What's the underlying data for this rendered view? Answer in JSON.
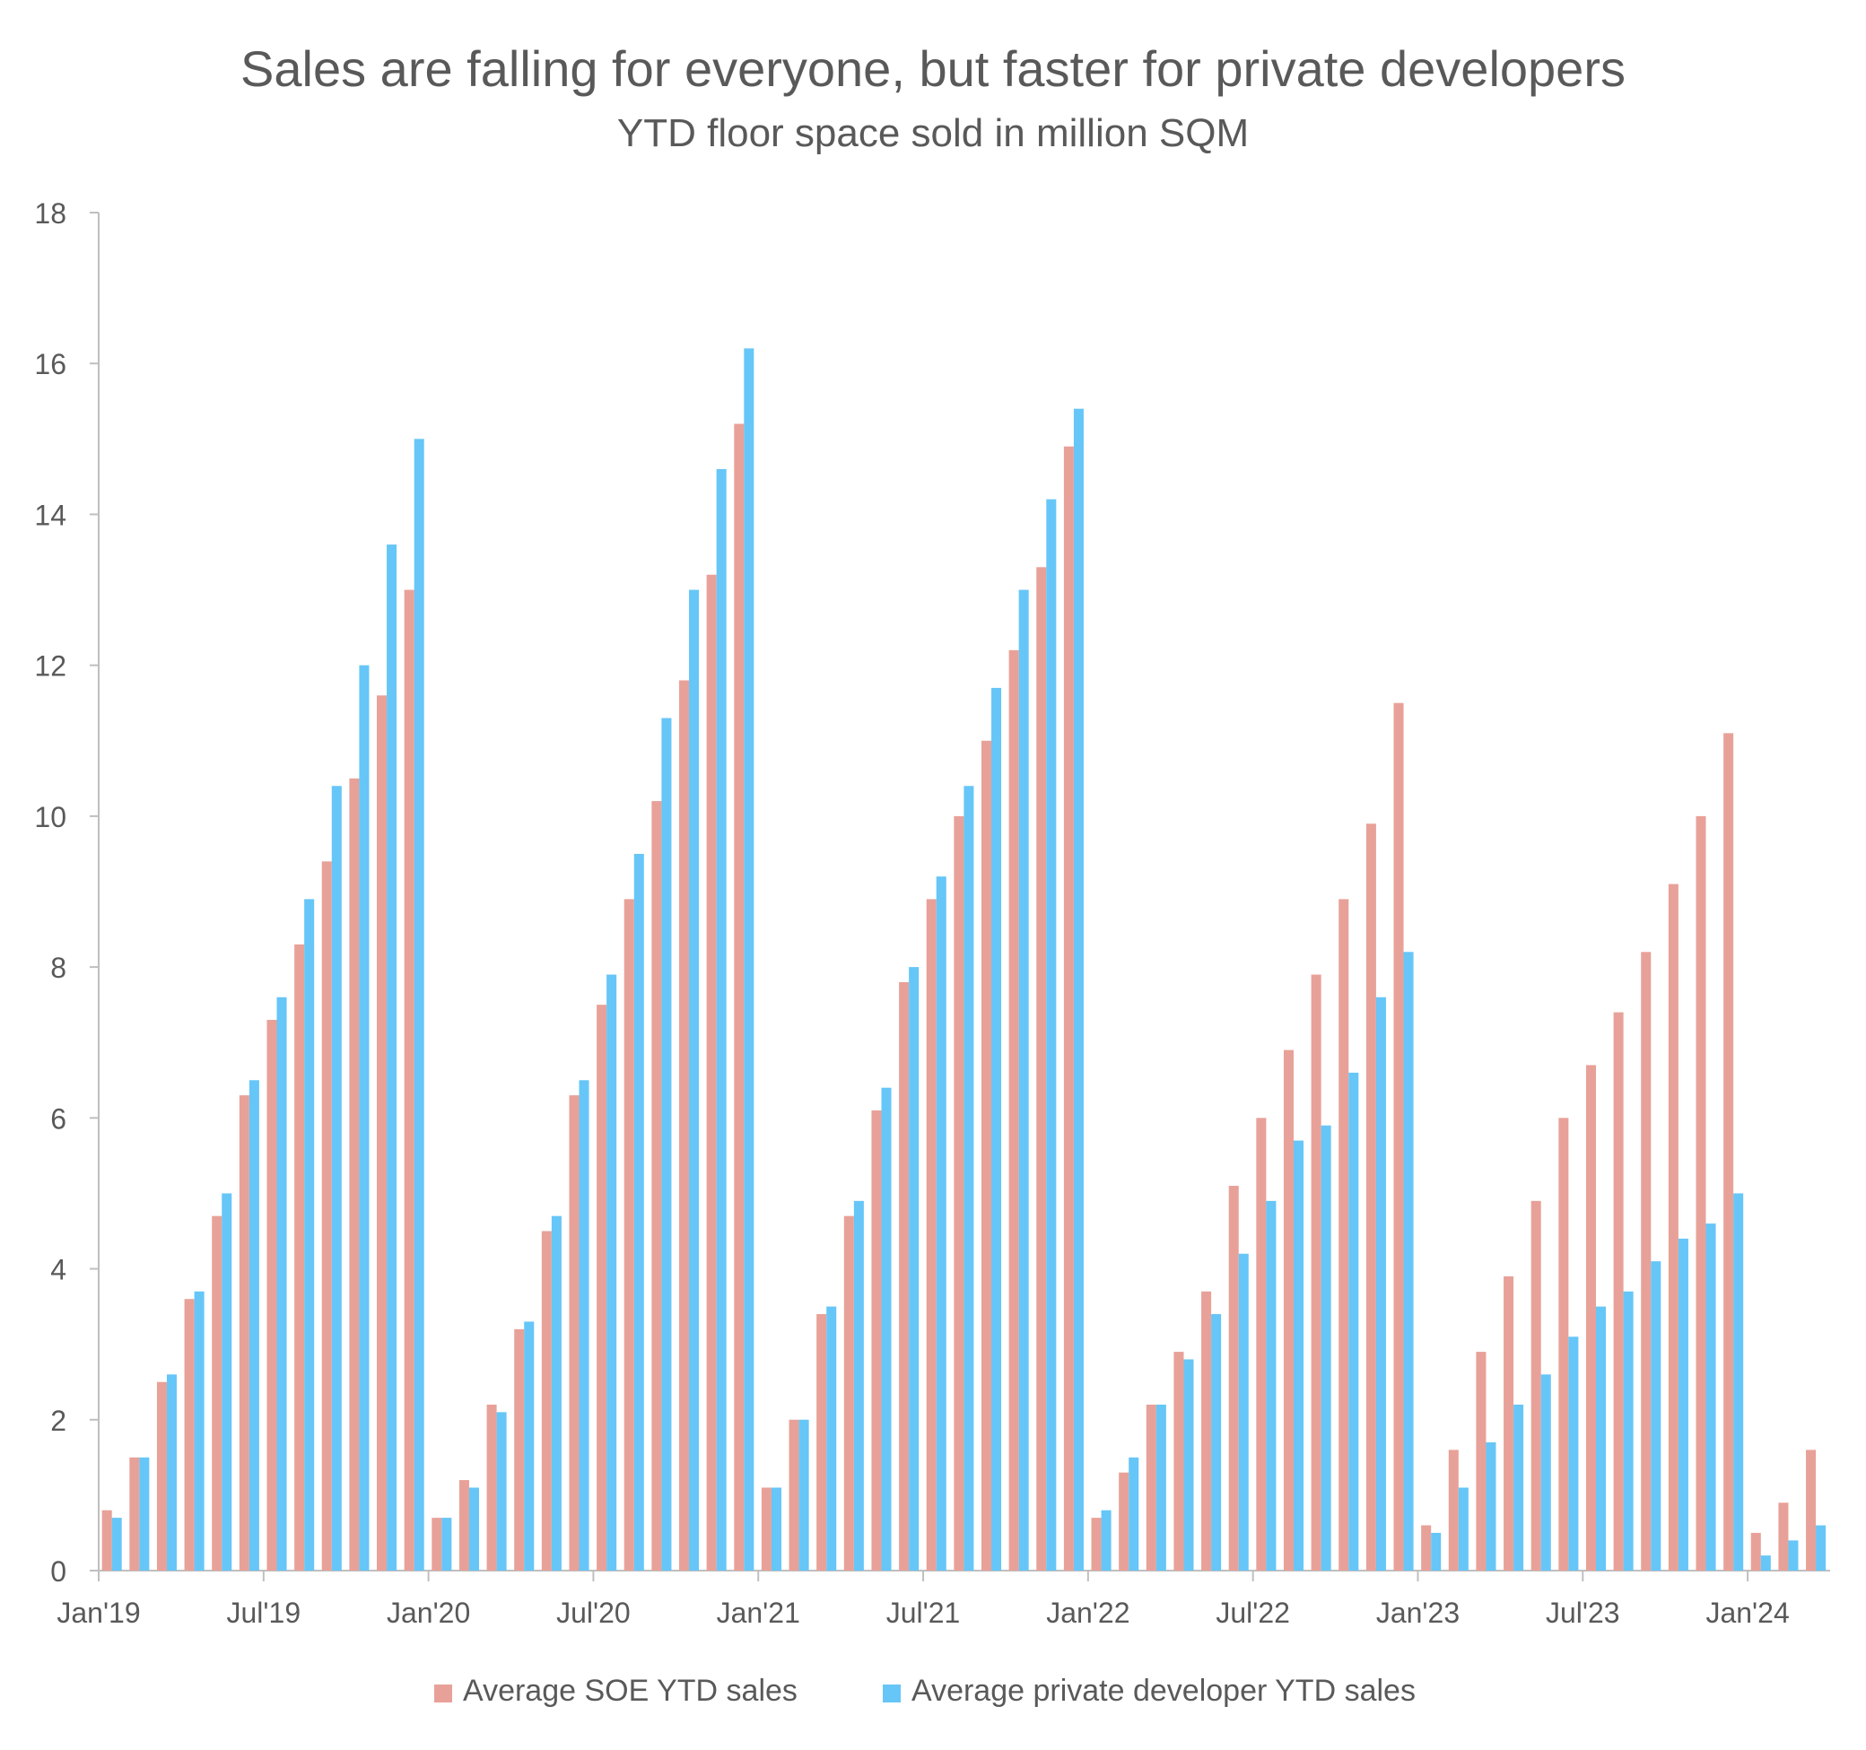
{
  "chart_data": {
    "type": "bar",
    "title": "Sales are falling for everyone, but faster for private developers",
    "subtitle": "YTD floor space sold in million SQM",
    "xlabel": "",
    "ylabel": "",
    "ylim": [
      0,
      18
    ],
    "yticks": [
      "0",
      "2",
      "4",
      "6",
      "8",
      "10",
      "12",
      "14",
      "16",
      "18"
    ],
    "xticks": [
      "Jan'19",
      "Jul'19",
      "Jan'20",
      "Jul'20",
      "Jan'21",
      "Jul'21",
      "Jan'22",
      "Jul'22",
      "Jan'23",
      "Jul'23",
      "Jan'24"
    ],
    "grid": false,
    "legend": "bottom",
    "categories": [
      "Jan'19",
      "Feb'19",
      "Mar'19",
      "Apr'19",
      "May'19",
      "Jun'19",
      "Jul'19",
      "Aug'19",
      "Sep'19",
      "Oct'19",
      "Nov'19",
      "Dec'19",
      "Jan'20",
      "Feb'20",
      "Mar'20",
      "Apr'20",
      "May'20",
      "Jun'20",
      "Jul'20",
      "Aug'20",
      "Sep'20",
      "Oct'20",
      "Nov'20",
      "Dec'20",
      "Jan'21",
      "Feb'21",
      "Mar'21",
      "Apr'21",
      "May'21",
      "Jun'21",
      "Jul'21",
      "Aug'21",
      "Sep'21",
      "Oct'21",
      "Nov'21",
      "Dec'21",
      "Jan'22",
      "Feb'22",
      "Mar'22",
      "Apr'22",
      "May'22",
      "Jun'22",
      "Jul'22",
      "Aug'22",
      "Sep'22",
      "Oct'22",
      "Nov'22",
      "Dec'22",
      "Jan'23",
      "Feb'23",
      "Mar'23",
      "Apr'23",
      "May'23",
      "Jun'23",
      "Jul'23",
      "Aug'23",
      "Sep'23",
      "Oct'23",
      "Nov'23",
      "Dec'23",
      "Jan'24",
      "Feb'24",
      "Mar'24"
    ],
    "series": [
      {
        "name": "Average SOE YTD sales",
        "color": "#E8A198",
        "values": [
          0.8,
          1.5,
          2.5,
          3.6,
          4.7,
          6.3,
          7.3,
          8.3,
          9.4,
          10.5,
          11.6,
          13.0,
          0.7,
          1.2,
          2.2,
          3.2,
          4.5,
          6.3,
          7.5,
          8.9,
          10.2,
          11.8,
          13.2,
          15.2,
          1.1,
          2.0,
          3.4,
          4.7,
          6.1,
          7.8,
          8.9,
          10.0,
          11.0,
          12.2,
          13.3,
          14.9,
          0.7,
          1.3,
          2.2,
          2.9,
          3.7,
          5.1,
          6.0,
          6.9,
          7.9,
          8.9,
          9.9,
          11.5,
          0.6,
          1.6,
          2.9,
          3.9,
          4.9,
          6.0,
          6.7,
          7.4,
          8.2,
          9.1,
          10.0,
          11.1,
          0.5,
          0.9,
          1.6
        ]
      },
      {
        "name": "Average private developer YTD sales",
        "color": "#66C6F7",
        "values": [
          0.7,
          1.5,
          2.6,
          3.7,
          5.0,
          6.5,
          7.6,
          8.9,
          10.4,
          12.0,
          13.6,
          15.0,
          0.7,
          1.1,
          2.1,
          3.3,
          4.7,
          6.5,
          7.9,
          9.5,
          11.3,
          13.0,
          14.6,
          16.2,
          1.1,
          2.0,
          3.5,
          4.9,
          6.4,
          8.0,
          9.2,
          10.4,
          11.7,
          13.0,
          14.2,
          15.4,
          0.8,
          1.5,
          2.2,
          2.8,
          3.4,
          4.2,
          4.9,
          5.7,
          5.9,
          6.6,
          7.6,
          8.2,
          0.5,
          1.1,
          1.7,
          2.2,
          2.6,
          3.1,
          3.5,
          3.7,
          4.1,
          4.4,
          4.6,
          5.0,
          0.2,
          0.4,
          0.6
        ]
      }
    ]
  }
}
